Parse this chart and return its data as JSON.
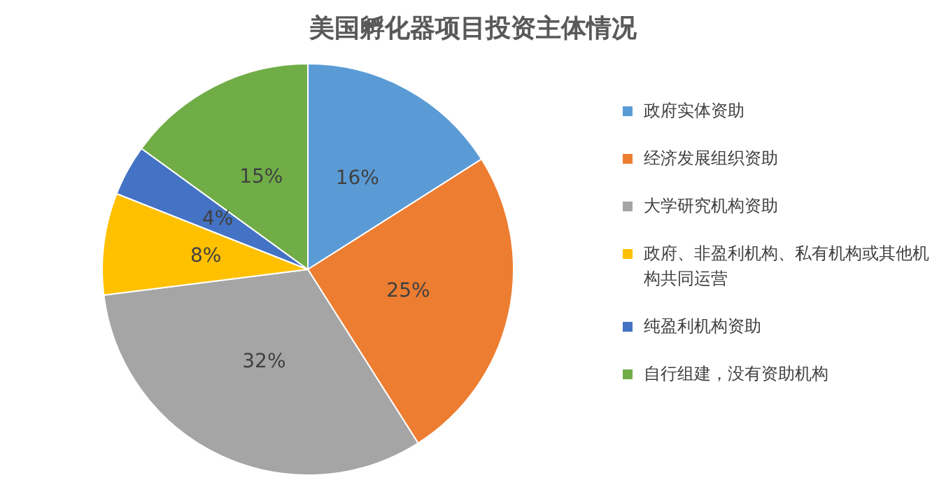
{
  "chart_data": {
    "type": "pie",
    "title": "美国孵化器项目投资主体情况",
    "categories": [
      "政府实体资助",
      "经济发展组织资助",
      "大学研究机构资助",
      "政府、非盈利机构、私有机构或其他机构共同运营",
      "纯盈利机构资助",
      "自行组建，没有资助机构"
    ],
    "values": [
      16,
      25,
      32,
      8,
      4,
      15
    ],
    "colors": [
      "#5b9bd5",
      "#ed7d31",
      "#a5a5a5",
      "#ffc000",
      "#4472c4",
      "#70ad47"
    ],
    "value_labels": [
      "16%",
      "25%",
      "32%",
      "8%",
      "4%",
      "15%"
    ],
    "legend": "right"
  }
}
